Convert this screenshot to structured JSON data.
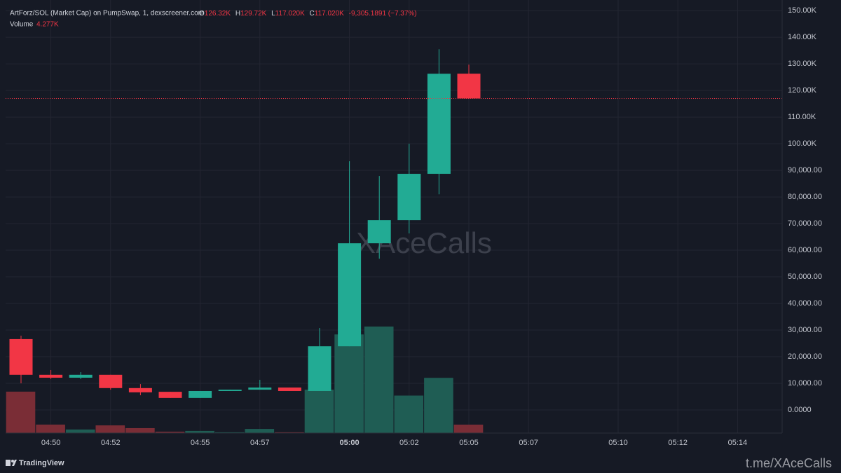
{
  "chart_data": {
    "type": "candlestick",
    "title": "ArtForz/SOL (Market Cap) on PumpSwap, 1, dexscreener.com",
    "ohlc_legend": {
      "o_label": "O",
      "o": "126.32K",
      "h_label": "H",
      "h": "129.72K",
      "l_label": "L",
      "l": "117.020K",
      "c_label": "C",
      "c": "117.020K",
      "change": "-9,305.1891 (−7.37%)"
    },
    "volume_legend": {
      "label": "Volume",
      "value": "4.277K"
    },
    "watermark": "XAceCalls",
    "footer": {
      "brand": "TradingView",
      "link": "t.me/XAceCalls"
    },
    "categories": [
      null,
      "04:50",
      null,
      "04:52",
      null,
      null,
      "04:55",
      null,
      "04:57",
      null,
      null,
      "05:00",
      null,
      "05:02",
      null,
      "05:05",
      null,
      "05:07",
      null,
      null,
      "05:10",
      null,
      "05:12",
      null,
      "05:14",
      null
    ],
    "open": [
      26600,
      13200,
      12100,
      13200,
      8200,
      6800,
      4500,
      7100,
      7600,
      8400,
      7100,
      23900,
      62600,
      71300,
      88700,
      126320,
      null,
      null,
      null,
      null,
      null,
      null,
      null,
      null,
      null,
      null
    ],
    "high": [
      27900,
      15000,
      14200,
      13200,
      9700,
      6800,
      7100,
      7600,
      11300,
      8400,
      30800,
      93400,
      87900,
      100000,
      135500,
      129720,
      null,
      null,
      null,
      null,
      null,
      null,
      null,
      null,
      null,
      null
    ],
    "low": [
      10000,
      11600,
      11600,
      7600,
      5500,
      4500,
      4500,
      7100,
      7600,
      7100,
      7100,
      23900,
      56800,
      66300,
      81000,
      117020,
      null,
      null,
      null,
      null,
      null,
      null,
      null,
      null,
      null,
      null
    ],
    "close": [
      13200,
      12100,
      13200,
      8200,
      6600,
      4500,
      7100,
      7600,
      8400,
      7100,
      23900,
      62600,
      71300,
      88700,
      126300,
      117020,
      null,
      null,
      null,
      null,
      null,
      null,
      null,
      null,
      null,
      null
    ],
    "volume": [
      21000,
      4300,
      1800,
      3900,
      2500,
      700,
      1100,
      400,
      2100,
      400,
      22000,
      50000,
      54000,
      19000,
      28000,
      4277,
      null,
      null,
      null,
      null,
      null,
      null,
      null,
      null,
      null,
      null
    ],
    "ylim": [
      -8700,
      154000
    ],
    "yticks": [
      {
        "value": 150000,
        "label": "150.00K"
      },
      {
        "value": 140000,
        "label": "140.00K"
      },
      {
        "value": 130000,
        "label": "130.00K"
      },
      {
        "value": 120000,
        "label": "120.00K"
      },
      {
        "value": 110000,
        "label": "110.00K"
      },
      {
        "value": 100000,
        "label": "100.00K"
      },
      {
        "value": 90000,
        "label": "90,000.00"
      },
      {
        "value": 80000,
        "label": "80,000.00"
      },
      {
        "value": 70000,
        "label": "70,000.00"
      },
      {
        "value": 60000,
        "label": "60,000.00"
      },
      {
        "value": 50000,
        "label": "50,000.00"
      },
      {
        "value": 40000,
        "label": "40,000.00"
      },
      {
        "value": 30000,
        "label": "30,000.00"
      },
      {
        "value": 20000,
        "label": "20,000.00"
      },
      {
        "value": 10000,
        "label": "10,000.00"
      },
      {
        "value": 0,
        "label": "0.0000"
      }
    ],
    "grid": true,
    "up_color": "#22ab94",
    "down_color": "#f23645",
    "volume_up_color": "#1f5d54",
    "volume_down_color": "#7a2d36"
  }
}
